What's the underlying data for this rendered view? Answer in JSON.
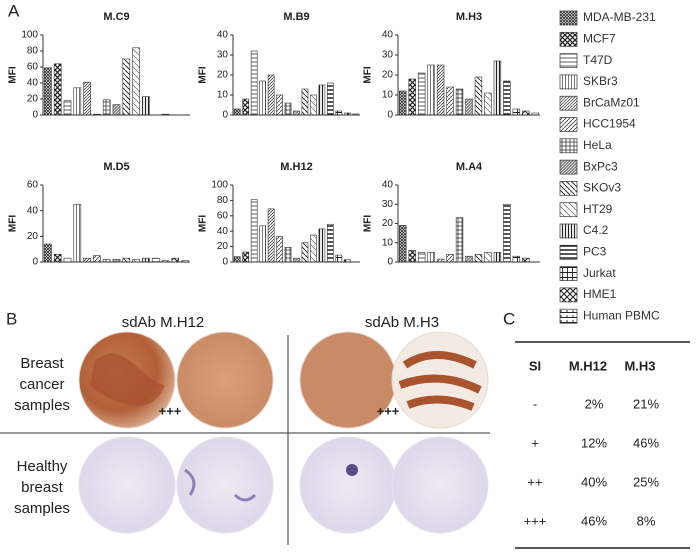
{
  "panels": [
    "A",
    "B",
    "C"
  ],
  "legend": {
    "labels": [
      "MDA-MB-231",
      "MCF7",
      "T47D",
      "SKBr3",
      "BrCaMz01",
      "HCC1954",
      "HeLa",
      "BxPc3",
      "SKOv3",
      "HT29",
      "C4.2",
      "PC3",
      "Jurkat",
      "HME1",
      "Human PBMC"
    ]
  },
  "chart_data": [
    {
      "type": "bar",
      "title": "M.C9",
      "y_label": "MFI",
      "values": [
        59,
        64,
        18,
        34,
        41,
        1,
        19,
        13,
        70,
        84,
        23,
        0,
        1,
        0,
        0
      ],
      "ylim": [
        0,
        100
      ],
      "yticks": [
        0,
        20,
        40,
        60,
        80,
        100
      ]
    },
    {
      "type": "bar",
      "title": "M.B9",
      "y_label": "MFI",
      "values": [
        3,
        8,
        32,
        17,
        20,
        10,
        6,
        2,
        13,
        10,
        15,
        16,
        2,
        1,
        0.5
      ],
      "ylim": [
        0,
        40
      ],
      "yticks": [
        0,
        10,
        20,
        30,
        40
      ]
    },
    {
      "type": "bar",
      "title": "M.H3",
      "y_label": "MFI",
      "values": [
        12,
        18,
        21,
        25,
        25,
        14,
        13,
        8,
        19,
        11,
        27,
        17,
        3,
        2,
        1
      ],
      "ylim": [
        0,
        40
      ],
      "yticks": [
        0,
        10,
        20,
        30,
        40
      ]
    },
    {
      "type": "bar",
      "title": "M.D5",
      "y_label": "MFI",
      "values": [
        14,
        6,
        3,
        45,
        3,
        5,
        2,
        2,
        3,
        2,
        3,
        3,
        1,
        3,
        1
      ],
      "ylim": [
        0,
        60
      ],
      "yticks": [
        0,
        20,
        40,
        60
      ]
    },
    {
      "type": "bar",
      "title": "M.H12",
      "y_label": "MFI",
      "values": [
        7,
        13,
        81,
        47,
        69,
        33,
        19,
        5,
        25,
        35,
        43,
        49,
        9,
        3,
        0
      ],
      "ylim": [
        0,
        100
      ],
      "yticks": [
        0,
        20,
        40,
        60,
        80,
        100
      ]
    },
    {
      "type": "bar",
      "title": "M.A4",
      "y_label": "MFI",
      "values": [
        19,
        6,
        5,
        5,
        1.5,
        4,
        23,
        3,
        4,
        5,
        5,
        30,
        3,
        2,
        0
      ],
      "ylim": [
        0,
        40
      ],
      "yticks": [
        0,
        10,
        20,
        30,
        40
      ]
    }
  ],
  "tissue": {
    "columns": [
      "sdAb M.H12",
      "sdAb M.H3"
    ],
    "rows": [
      [
        "Breast",
        "cancer",
        "samples"
      ],
      [
        "Healthy",
        "breast",
        "samples"
      ]
    ],
    "scores": [
      "+++",
      "+++"
    ]
  },
  "table": {
    "header": [
      "SI",
      "M.H12",
      "M.H3"
    ],
    "rows": [
      [
        "-",
        "2%",
        "21%"
      ],
      [
        "+",
        "12%",
        "46%"
      ],
      [
        "++",
        "40%",
        "25%"
      ],
      [
        "+++",
        "46%",
        "8%"
      ]
    ]
  }
}
